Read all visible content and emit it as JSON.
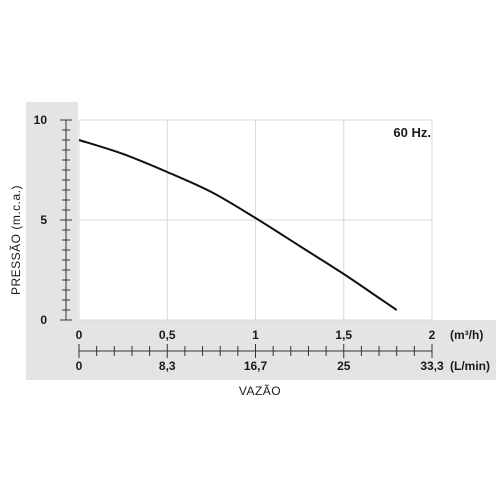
{
  "chart_data": {
    "type": "line",
    "annotation": "60 Hz.",
    "ylabel": "PRESSÃO (m.c.a.)",
    "xlabel": "VAZÃO",
    "ylim": [
      0,
      10
    ],
    "yticks": [
      "0",
      "5",
      "10"
    ],
    "xlim": [
      0,
      2
    ],
    "xticks": [
      "0",
      "0,5",
      "1",
      "1,5",
      "2"
    ],
    "xunit": "(m³/h)",
    "x2ticks": [
      "0",
      "8,3",
      "16,7",
      "25",
      "33,3"
    ],
    "x2unit": "(L/min)",
    "grid": true,
    "series": [
      {
        "x": [
          0,
          0.25,
          0.5,
          0.75,
          1.0,
          1.25,
          1.5,
          1.7,
          1.8
        ],
        "y": [
          9.0,
          8.3,
          7.4,
          6.4,
          5.1,
          3.7,
          2.3,
          1.1,
          0.5
        ]
      }
    ],
    "colors": {
      "line": "#111111",
      "band": "#e4e4e2",
      "grid": "#d8d8d8",
      "axis": "#333333"
    }
  }
}
